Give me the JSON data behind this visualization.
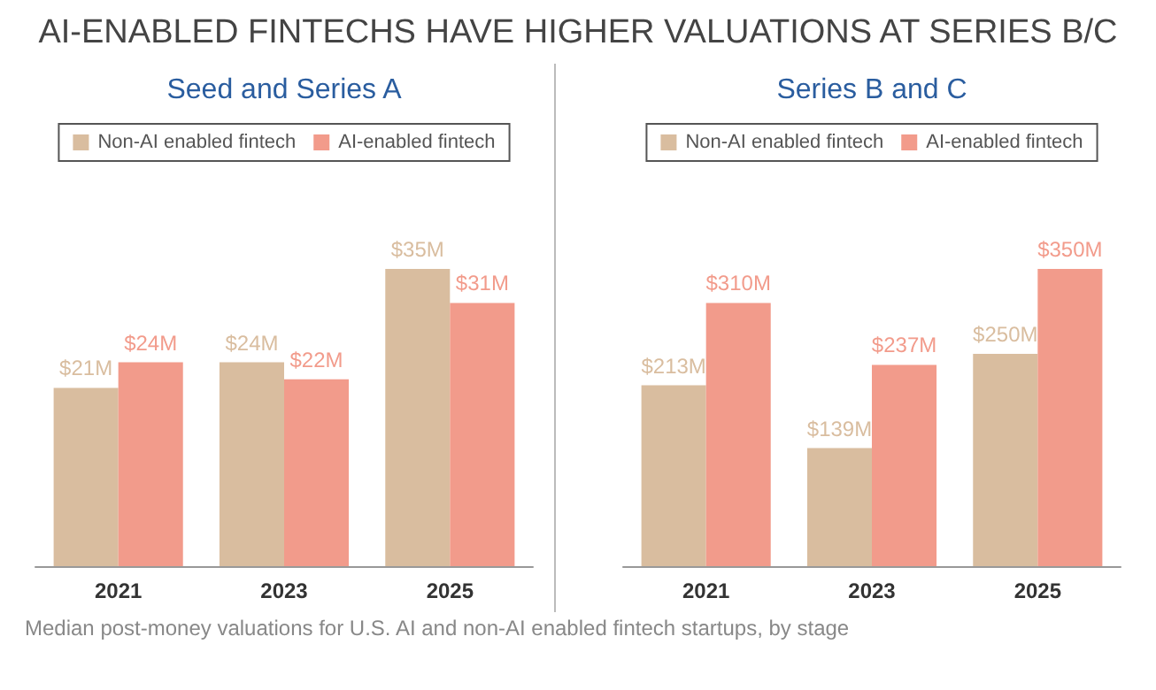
{
  "chart_data": [
    {
      "type": "bar",
      "title": "Seed and Series A",
      "annotations": [
        "AI-ENABLED FINTECHS HAVE HIGHER VALUATIONS AT SERIES B/C",
        "Median post-money valuations for U.S. AI and non-AI enabled fintech startups, by stage"
      ],
      "categories": [
        "2021",
        "2023",
        "2025"
      ],
      "legend": "top",
      "series": [
        {
          "name": "Non-AI enabled fintech",
          "color": "#d9bd9f",
          "values": [
            21,
            24,
            35
          ],
          "value_labels": [
            "$21M",
            "$24M",
            "$35M"
          ]
        },
        {
          "name": "AI-enabled fintech",
          "color": "#f29b8b",
          "values": [
            24,
            22,
            31
          ],
          "value_labels": [
            "$24M",
            "$22M",
            "$31M"
          ]
        }
      ]
    },
    {
      "type": "bar",
      "title": "Series B and C",
      "categories": [
        "2021",
        "2023",
        "2025"
      ],
      "legend": "top",
      "series": [
        {
          "name": "Non-AI enabled fintech",
          "color": "#d9bd9f",
          "values": [
            213,
            139,
            250
          ],
          "value_labels": [
            "$213M",
            "$139M",
            "$250M"
          ]
        },
        {
          "name": "AI-enabled fintech",
          "color": "#f29b8b",
          "values": [
            310,
            237,
            350
          ],
          "value_labels": [
            "$310M",
            "$237M",
            "$350M"
          ]
        }
      ]
    }
  ]
}
